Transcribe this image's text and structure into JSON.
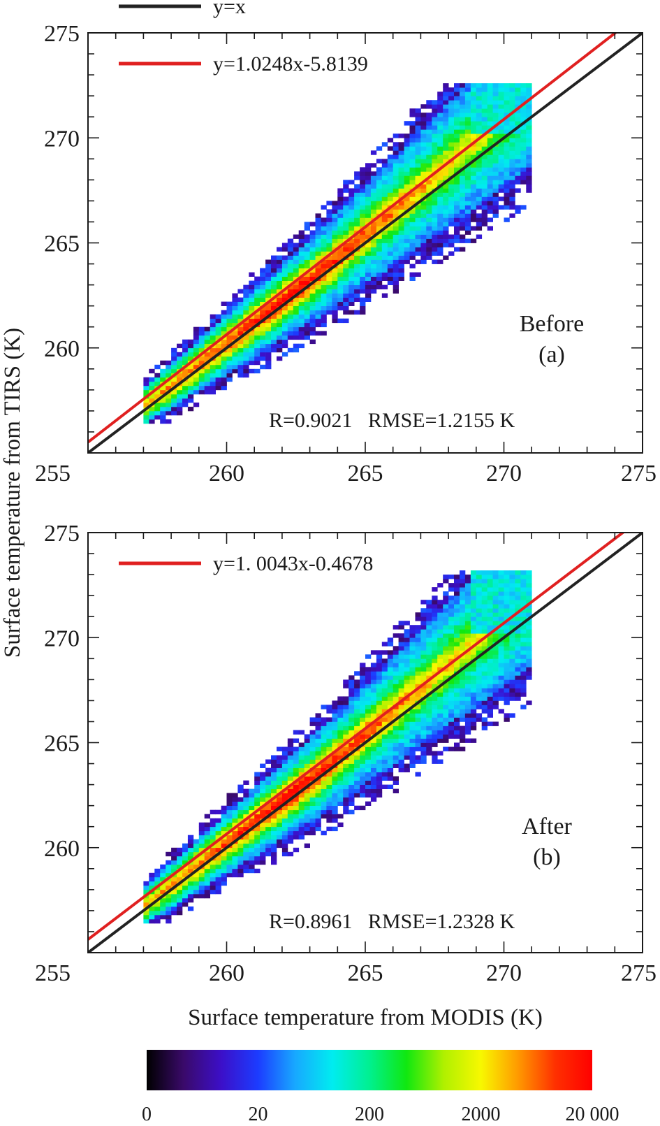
{
  "ylabel": "Surface temperature from TIRS (K)",
  "xlabel": "Surface temperature from MODIS (K)",
  "colorbar": {
    "ticks": [
      "0",
      "20",
      "200",
      "2000",
      "20 000"
    ],
    "colors": [
      "#000000",
      "#3a0a6a",
      "#3c0fc8",
      "#1c3cff",
      "#18a8ff",
      "#00ecf0",
      "#00f090",
      "#10e810",
      "#b0f000",
      "#f8f800",
      "#ff9a00",
      "#ff3000",
      "#ff0000"
    ]
  },
  "chart_data": [
    {
      "type": "heatmap",
      "panel_label": "(a)",
      "annotation": "Before",
      "stats_text": "R=0.9021   RMSE=1.2155 K",
      "stats": {
        "R": 0.9021,
        "RMSE": 1.2155
      },
      "xlim": [
        255,
        275
      ],
      "ylim": [
        255,
        275
      ],
      "xticks": [
        255,
        260,
        265,
        270,
        275
      ],
      "yticks": [
        260,
        265,
        270,
        275
      ],
      "legend": [
        {
          "label": "y=x",
          "color": "#222222"
        },
        {
          "label": "y=1.0248x-5.8139",
          "color": "#e02020"
        }
      ],
      "lines": [
        {
          "name": "y=x",
          "slope": 1.0,
          "intercept": 0.0,
          "color": "#222222"
        },
        {
          "name": "y=1.0248x-5.8139",
          "slope": 1.0248,
          "intercept": -5.8139,
          "color": "#e02020"
        }
      ],
      "density": {
        "x_range": [
          257.0,
          270.8
        ],
        "y_range": [
          256.4,
          272.4
        ],
        "core_spread": 0.85,
        "outer_spread": 3.4
      }
    },
    {
      "type": "heatmap",
      "panel_label": "(b)",
      "annotation": "After",
      "stats_text": "R=0.8961   RMSE=1.2328 K",
      "stats": {
        "R": 0.8961,
        "RMSE": 1.2328
      },
      "xlim": [
        255,
        275
      ],
      "ylim": [
        255,
        275
      ],
      "xticks": [
        255,
        260,
        265,
        270,
        275
      ],
      "yticks": [
        260,
        265,
        270,
        275
      ],
      "legend": [
        {
          "label": "y=1. 0043x-0.4678",
          "color": "#e02020"
        }
      ],
      "lines": [
        {
          "name": "y=x",
          "slope": 1.0,
          "intercept": 0.0,
          "color": "#222222"
        },
        {
          "name": "y=1.0043x-0.4678",
          "slope": 1.0043,
          "intercept": -0.4678,
          "color": "#e02020"
        }
      ],
      "density": {
        "x_range": [
          257.0,
          270.8
        ],
        "y_range": [
          256.4,
          273.0
        ],
        "core_spread": 0.85,
        "outer_spread": 3.4
      }
    }
  ]
}
